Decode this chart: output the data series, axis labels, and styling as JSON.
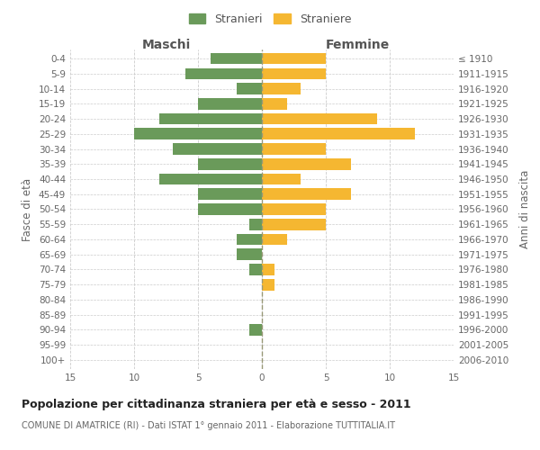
{
  "age_groups": [
    "0-4",
    "5-9",
    "10-14",
    "15-19",
    "20-24",
    "25-29",
    "30-34",
    "35-39",
    "40-44",
    "45-49",
    "50-54",
    "55-59",
    "60-64",
    "65-69",
    "70-74",
    "75-79",
    "80-84",
    "85-89",
    "90-94",
    "95-99",
    "100+"
  ],
  "birth_years": [
    "2006-2010",
    "2001-2005",
    "1996-2000",
    "1991-1995",
    "1986-1990",
    "1981-1985",
    "1976-1980",
    "1971-1975",
    "1966-1970",
    "1961-1965",
    "1956-1960",
    "1951-1955",
    "1946-1950",
    "1941-1945",
    "1936-1940",
    "1931-1935",
    "1926-1930",
    "1921-1925",
    "1916-1920",
    "1911-1915",
    "≤ 1910"
  ],
  "maschi": [
    4,
    6,
    2,
    5,
    8,
    10,
    7,
    5,
    8,
    5,
    5,
    1,
    2,
    2,
    1,
    0,
    0,
    0,
    1,
    0,
    0
  ],
  "femmine": [
    5,
    5,
    3,
    2,
    9,
    12,
    5,
    7,
    3,
    7,
    5,
    5,
    2,
    0,
    1,
    1,
    0,
    0,
    0,
    0,
    0
  ],
  "maschi_color": "#6a9a5a",
  "femmine_color": "#f5b731",
  "background_color": "#ffffff",
  "grid_color": "#cccccc",
  "title": "Popolazione per cittadinanza straniera per età e sesso - 2011",
  "subtitle": "COMUNE DI AMATRICE (RI) - Dati ISTAT 1° gennaio 2011 - Elaborazione TUTTITALIA.IT",
  "xlabel_left": "Maschi",
  "xlabel_right": "Femmine",
  "ylabel_left": "Fasce di età",
  "ylabel_right": "Anni di nascita",
  "legend_maschi": "Stranieri",
  "legend_femmine": "Straniere",
  "xlim": 15,
  "bar_height": 0.75
}
